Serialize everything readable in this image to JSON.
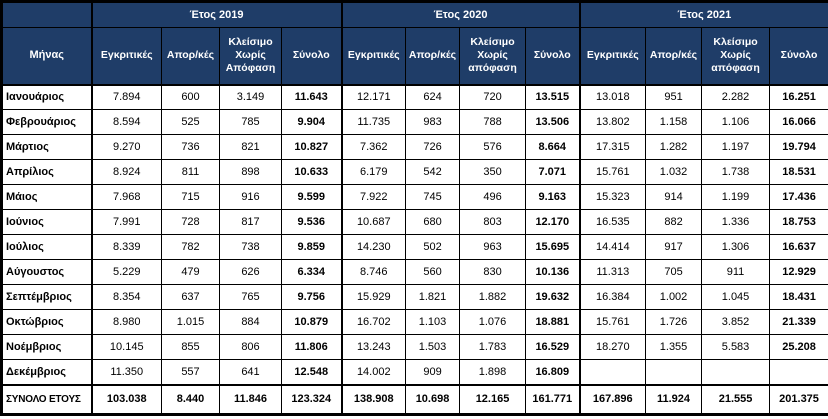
{
  "table": {
    "month_header": "Μήνας",
    "total_label": "ΣΥΝΟΛΟ ΕΤΟΥΣ"
  },
  "colors": {
    "header_bg": "#1F3D68",
    "header_text": "#FFFFFF",
    "border": "#000000",
    "cell_bg": "#FFFFFF",
    "text": "#000000"
  },
  "chart_data": {
    "type": "table",
    "title": "",
    "row_axis_label": "Μήνας",
    "total_row_label": "ΣΥΝΟΛΟ ΕΤΟΥΣ",
    "number_format": "thousands-dot",
    "categories": [
      "Ιανουάριος",
      "Φεβρουάριος",
      "Μάρτιος",
      "Απρίλιος",
      "Μάιος",
      "Ιούνιος",
      "Ιούλιος",
      "Αύγουστος",
      "Σεπτέμβριος",
      "Οκτώβριος",
      "Νοέμβριος",
      "Δεκέμβριος"
    ],
    "groups": [
      {
        "name": "Έτος 2019",
        "series": [
          {
            "name": "Εγκριτικές",
            "values": [
              7894,
              8594,
              9270,
              8924,
              7968,
              7991,
              8339,
              5229,
              8354,
              8980,
              10145,
              11350
            ],
            "total": 103038
          },
          {
            "name": "Απορ/κές",
            "values": [
              600,
              525,
              736,
              811,
              715,
              728,
              782,
              479,
              637,
              1015,
              855,
              557
            ],
            "total": 8440
          },
          {
            "name": "Κλείσιμο Χωρίς Απόφαση",
            "values": [
              3149,
              785,
              821,
              898,
              916,
              817,
              738,
              626,
              765,
              884,
              806,
              641
            ],
            "total": 11846
          },
          {
            "name": "Σύνολο",
            "values": [
              11643,
              9904,
              10827,
              10633,
              9599,
              9536,
              9859,
              6334,
              9756,
              10879,
              11806,
              12548
            ],
            "total": 123324
          }
        ]
      },
      {
        "name": "Έτος 2020",
        "series": [
          {
            "name": "Εγκριτικές",
            "values": [
              12171,
              11735,
              7362,
              6179,
              7922,
              10687,
              14230,
              8746,
              15929,
              16702,
              13243,
              14002
            ],
            "total": 138908
          },
          {
            "name": "Απορ/κές",
            "values": [
              624,
              983,
              726,
              542,
              745,
              680,
              502,
              560,
              1821,
              1103,
              1503,
              909
            ],
            "total": 10698
          },
          {
            "name": "Κλείσιμο Χωρίς απόφαση",
            "values": [
              720,
              788,
              576,
              350,
              496,
              803,
              963,
              830,
              1882,
              1076,
              1783,
              1898
            ],
            "total": 12165
          },
          {
            "name": "Σύνολο",
            "values": [
              13515,
              13506,
              8664,
              7071,
              9163,
              12170,
              15695,
              10136,
              19632,
              18881,
              16529,
              16809
            ],
            "total": 161771
          }
        ]
      },
      {
        "name": "Έτος 2021",
        "series": [
          {
            "name": "Εγκριτικές",
            "values": [
              13018,
              13802,
              17315,
              15761,
              15323,
              16535,
              14414,
              11313,
              16384,
              15761,
              18270,
              null
            ],
            "total": 167896
          },
          {
            "name": "Απορ/κές",
            "values": [
              951,
              1158,
              1282,
              1032,
              914,
              882,
              917,
              705,
              1002,
              1726,
              1355,
              null
            ],
            "total": 11924
          },
          {
            "name": "Κλείσιμο Χωρίς απόφαση",
            "values": [
              2282,
              1106,
              1197,
              1738,
              1199,
              1336,
              1306,
              911,
              1045,
              3852,
              5583,
              null
            ],
            "total": 21555
          },
          {
            "name": "Σύνολο",
            "values": [
              16251,
              16066,
              19794,
              18531,
              17436,
              18753,
              16637,
              12929,
              18431,
              21339,
              25208,
              null
            ],
            "total": 201375
          }
        ]
      }
    ]
  }
}
